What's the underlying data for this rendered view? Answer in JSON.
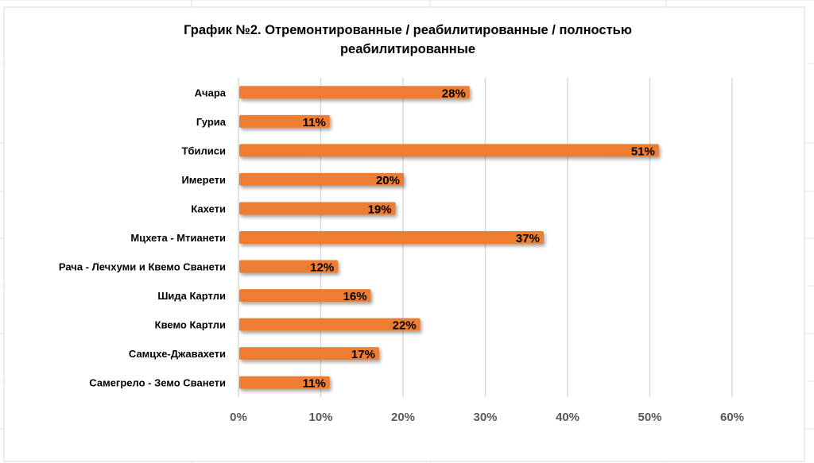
{
  "chart_data": {
    "type": "bar",
    "orientation": "horizontal",
    "title": "График №2. Отремонтированные / реабилитированные / полностью реабилитированные",
    "title_lines": [
      "График №2. Отремонтированные / реабилитированные / полностью",
      "реабилитированные"
    ],
    "categories": [
      "Ачара",
      "Гуриа",
      "Тбилиси",
      "Имерети",
      "Кахети",
      "Мцхета - Мтианети",
      "Рача - Лечхуми и Квемо Сванети",
      "Шида Картли",
      "Квемо Картли",
      "Самцхе-Джавахети",
      "Самегрело - Земо Сванети"
    ],
    "values": [
      28,
      11,
      51,
      20,
      19,
      37,
      12,
      16,
      22,
      17,
      11
    ],
    "data_labels": [
      "28%",
      "11%",
      "51%",
      "20%",
      "19%",
      "37%",
      "12%",
      "16%",
      "22%",
      "17%",
      "11%"
    ],
    "xlim": [
      0,
      60
    ],
    "x_ticks": [
      "0%",
      "10%",
      "20%",
      "30%",
      "40%",
      "50%",
      "60%"
    ],
    "xlabel": "",
    "ylabel": "",
    "grid": "vertical",
    "legend": "none",
    "bar_color": "#ED7D31"
  }
}
